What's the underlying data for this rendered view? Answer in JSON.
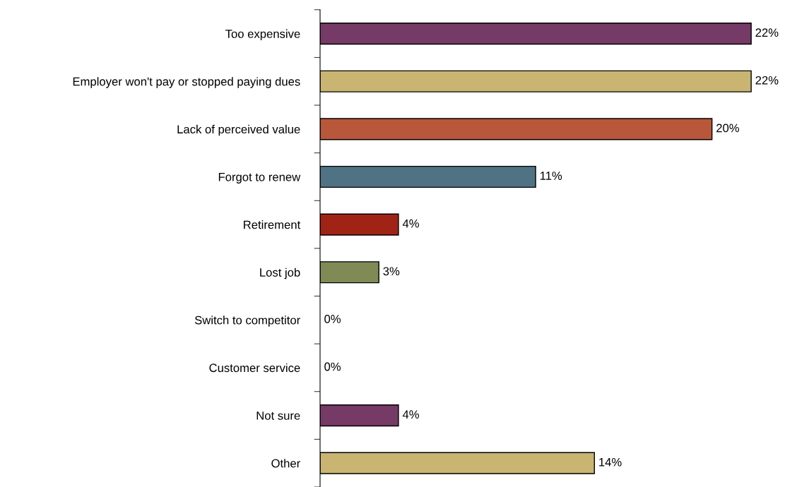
{
  "chart_data": {
    "type": "bar",
    "orientation": "horizontal",
    "categories": [
      "Too expensive",
      "Employer won't pay or stopped paying dues",
      "Lack of perceived value",
      "Forgot to renew",
      "Retirement",
      "Lost job",
      "Switch to competitor",
      "Customer service",
      "Not sure",
      "Other"
    ],
    "values": [
      22,
      22,
      20,
      11,
      4,
      3,
      0,
      0,
      4,
      14
    ],
    "colors": [
      "#763a66",
      "#c9b571",
      "#b8573a",
      "#4f7385",
      "#a12316",
      "#7f8a55",
      "#763a66",
      "#c9b571",
      "#763a66",
      "#c9b571"
    ],
    "value_labels": [
      "22%",
      "22%",
      "20%",
      "11%",
      "4%",
      "3%",
      "0%",
      "0%",
      "4%",
      "14%"
    ],
    "grid": false,
    "legend": false,
    "tick_labels": "y"
  }
}
